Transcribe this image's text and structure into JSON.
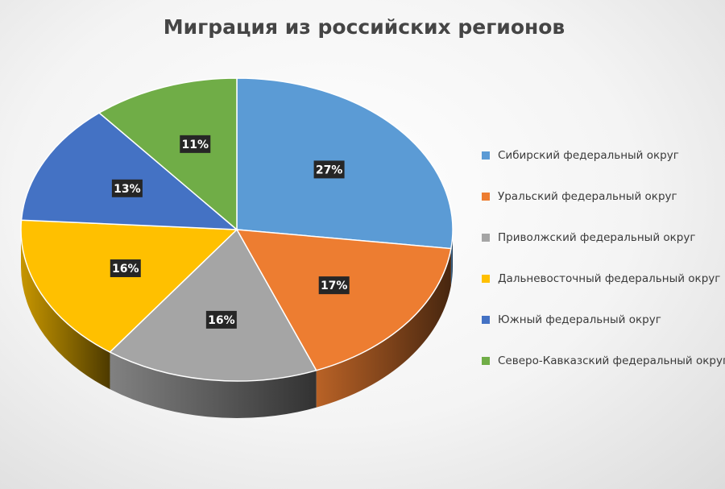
{
  "chart_data": {
    "type": "pie",
    "title": "Миграция из российских регионов",
    "legend_position": "right",
    "slices": [
      {
        "label": "Сибирский федеральный округ",
        "value": 27,
        "display": "27%",
        "color": "#5B9BD5"
      },
      {
        "label": "Уральский федеральный округ",
        "value": 17,
        "display": "17%",
        "color": "#ED7D31"
      },
      {
        "label": "Приволжский федеральный округ",
        "value": 16,
        "display": "16%",
        "color": "#A5A5A5"
      },
      {
        "label": "Дальневосточный федеральный округ",
        "value": 16,
        "display": "16%",
        "color": "#FFC000"
      },
      {
        "label": "Южный федеральный округ",
        "value": 13,
        "display": "13%",
        "color": "#4472C4"
      },
      {
        "label": "Северо-Кавказский федеральный округ",
        "value": 11,
        "display": "11%",
        "color": "#70AD47"
      }
    ]
  }
}
